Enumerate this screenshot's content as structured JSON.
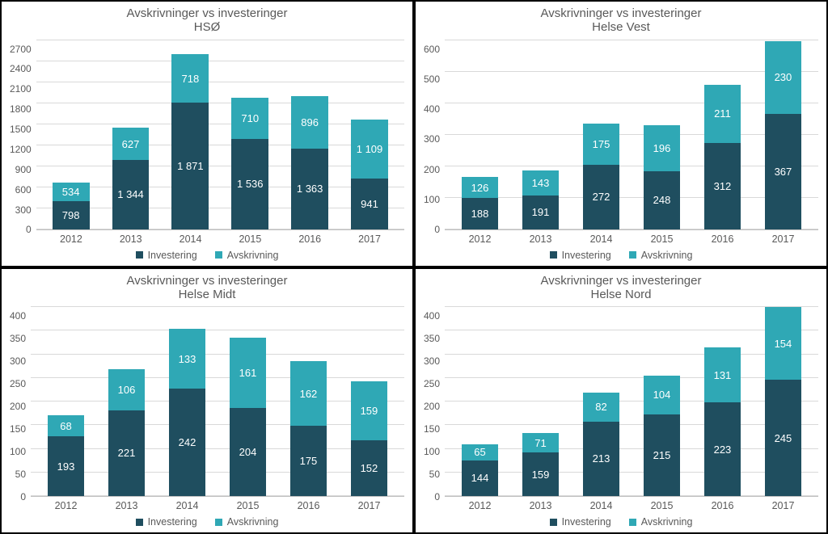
{
  "colors": {
    "investering": "#1f4e5f",
    "avskrivning": "#2fa8b5",
    "gridline": "#d9d9d9",
    "text": "#595959",
    "bg": "#ffffff"
  },
  "legend": {
    "investering": "Investering",
    "avskrivning": "Avskrivning"
  },
  "charts": [
    {
      "id": "hso",
      "title_line1": "Avskrivninger vs investeringer",
      "title_line2": "HSØ",
      "ymax": 2700,
      "ystep": 300,
      "categories": [
        "2012",
        "2013",
        "2014",
        "2015",
        "2016",
        "2017"
      ],
      "investering": [
        798,
        1344,
        1871,
        1536,
        1363,
        941
      ],
      "avskrivning": [
        534,
        627,
        718,
        710,
        896,
        1109
      ],
      "investering_labels": [
        "798",
        "1 344",
        "1 871",
        "1 536",
        "1 363",
        "941"
      ],
      "avskrivning_labels": [
        "534",
        "627",
        "718",
        "710",
        "896",
        "1 109"
      ]
    },
    {
      "id": "vest",
      "title_line1": "Avskrivninger vs investeringer",
      "title_line2": "Helse Vest",
      "ymax": 600,
      "ystep": 100,
      "categories": [
        "2012",
        "2013",
        "2014",
        "2015",
        "2016",
        "2017"
      ],
      "investering": [
        188,
        191,
        272,
        248,
        312,
        367
      ],
      "avskrivning": [
        126,
        143,
        175,
        196,
        211,
        230
      ],
      "investering_labels": [
        "188",
        "191",
        "272",
        "248",
        "312",
        "367"
      ],
      "avskrivning_labels": [
        "126",
        "143",
        "175",
        "196",
        "211",
        "230"
      ]
    },
    {
      "id": "midt",
      "title_line1": "Avskrivninger vs investeringer",
      "title_line2": "Helse Midt",
      "ymax": 400,
      "ystep": 50,
      "categories": [
        "2012",
        "2013",
        "2014",
        "2015",
        "2016",
        "2017"
      ],
      "investering": [
        193,
        221,
        242,
        204,
        175,
        152
      ],
      "avskrivning": [
        68,
        106,
        133,
        161,
        162,
        159
      ],
      "investering_labels": [
        "193",
        "221",
        "242",
        "204",
        "175",
        "152"
      ],
      "avskrivning_labels": [
        "68",
        "106",
        "133",
        "161",
        "162",
        "159"
      ]
    },
    {
      "id": "nord",
      "title_line1": "Avskrivninger vs investeringer",
      "title_line2": "Helse Nord",
      "ymax": 400,
      "ystep": 50,
      "categories": [
        "2012",
        "2013",
        "2014",
        "2015",
        "2016",
        "2017"
      ],
      "investering": [
        144,
        159,
        213,
        215,
        223,
        245
      ],
      "avskrivning": [
        65,
        71,
        82,
        104,
        131,
        154
      ],
      "investering_labels": [
        "144",
        "159",
        "213",
        "215",
        "223",
        "245"
      ],
      "avskrivning_labels": [
        "65",
        "71",
        "82",
        "104",
        "131",
        "154"
      ]
    }
  ]
}
